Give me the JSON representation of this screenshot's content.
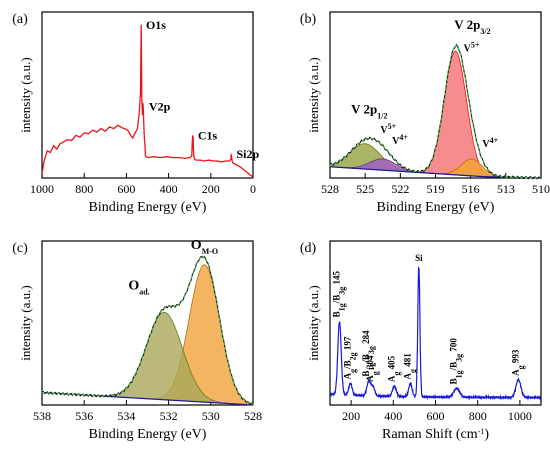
{
  "chart_data": [
    {
      "panel_label": "(a)",
      "type": "line",
      "xlabel": "Binding Energy (eV)",
      "ylabel": "intensity (a.u.)",
      "xlim": [
        1000,
        0
      ],
      "xticks": [
        1000,
        800,
        600,
        400,
        200,
        0
      ],
      "x_reversed": true,
      "series_color": "#e8141a",
      "series": [
        {
          "x": [
            1000,
            990,
            975,
            960,
            945,
            930,
            915,
            900,
            880,
            860,
            840,
            820,
            800,
            780,
            760,
            740,
            720,
            700,
            680,
            660,
            640,
            620,
            600,
            590,
            580,
            570,
            560,
            548,
            540,
            533,
            530,
            527,
            524,
            522,
            520,
            517,
            515,
            512,
            510,
            500,
            470,
            440,
            410,
            380,
            350,
            320,
            300,
            290,
            288,
            286,
            284,
            282,
            280,
            276,
            270,
            250,
            230,
            210,
            190,
            170,
            150,
            130,
            112,
            105,
            103,
            101,
            99,
            96,
            90,
            75,
            60,
            45,
            30,
            15,
            5,
            0
          ],
          "y": [
            5,
            20,
            32,
            30,
            38,
            34,
            40,
            42,
            45,
            44,
            50,
            48,
            53,
            52,
            56,
            54,
            58,
            55,
            60,
            58,
            62,
            59,
            57,
            55,
            50,
            47,
            52,
            58,
            75,
            100,
            180,
            96,
            74,
            88,
            82,
            60,
            48,
            38,
            26,
            24,
            25,
            24,
            25,
            24,
            24,
            23,
            24,
            26,
            40,
            50,
            48,
            32,
            25,
            22,
            21,
            21,
            20,
            21,
            20,
            20,
            19,
            20,
            20,
            22,
            28,
            24,
            20,
            18,
            17,
            15,
            13,
            10,
            7,
            4,
            2,
            0
          ]
        }
      ],
      "annotations": [
        {
          "text": "O1s",
          "x": 531,
          "y": 180
        },
        {
          "text": "V2p",
          "x": 517,
          "y": 84
        },
        {
          "text": "C1s",
          "x": 285,
          "y": 50
        },
        {
          "text": "Si2p",
          "x": 102,
          "y": 28
        }
      ]
    },
    {
      "panel_label": "(b)",
      "type": "line",
      "xlabel": "Binding Energy (eV)",
      "ylabel": "intensity (a.u.)",
      "xlim": [
        528,
        510
      ],
      "xticks": [
        528,
        525,
        522,
        519,
        516,
        513,
        510
      ],
      "x_reversed": true,
      "peaks": [
        {
          "center": 517.3,
          "height": 88,
          "width": 0.95,
          "color": "#f4787a",
          "stroke": "#e8141a"
        },
        {
          "center": 515.9,
          "height": 12,
          "width": 0.9,
          "color": "#f2a238",
          "stroke": "#c06a10"
        },
        {
          "center": 525.0,
          "height": 18,
          "width": 1.3,
          "color": "#9aa84a",
          "stroke": "#6f7a20"
        },
        {
          "center": 523.5,
          "height": 8,
          "width": 1.1,
          "color": "#a15fc0",
          "stroke": "#6b2d8a"
        }
      ],
      "background": {
        "y_at_528": 8,
        "y_at_515": 1,
        "y_at_510": 0
      },
      "annotations": [
        {
          "text": "V 2p",
          "sub": "3/2",
          "x": 517.4,
          "y": 106
        },
        {
          "text": "V",
          "sup": "5+",
          "x": 516.6,
          "y": 90
        },
        {
          "text": "V",
          "sup": "4+",
          "x": 515.0,
          "y": 22
        },
        {
          "text": "V 2p",
          "sub": "1/2",
          "x": 526.2,
          "y": 46
        },
        {
          "text": "V",
          "sup": "5+",
          "x": 523.7,
          "y": 32
        },
        {
          "text": "V",
          "sup": "4+",
          "x": 522.7,
          "y": 24
        }
      ]
    },
    {
      "panel_label": "(c)",
      "type": "line",
      "xlabel": "Binding Energy (eV)",
      "ylabel": "intensity (a.u.)",
      "xlim": [
        538,
        528
      ],
      "xticks": [
        538,
        536,
        534,
        532,
        530,
        528
      ],
      "x_reversed": true,
      "peaks": [
        {
          "center": 530.3,
          "height": 88,
          "width": 0.72,
          "color": "#f0a238",
          "stroke": "#c06a10"
        },
        {
          "center": 532.2,
          "height": 56,
          "width": 0.85,
          "color": "#a9a85a",
          "stroke": "#6f7a20"
        }
      ],
      "background": {
        "y_at_538": 8,
        "y_at_528": 0
      },
      "annotations": [
        {
          "text": "O",
          "sub": "M-O",
          "x": 530.3,
          "y": 100
        },
        {
          "text": "O",
          "sub": "ad.",
          "x": 533.4,
          "y": 74
        }
      ]
    },
    {
      "panel_label": "(d)",
      "type": "line",
      "xlabel": "Raman Shift (cm",
      "xlabel_sup": "-1",
      "xlabel_end": ")",
      "ylabel": "intensity (a.u.)",
      "xlim": [
        100,
        1100
      ],
      "xticks": [
        200,
        400,
        600,
        800,
        1000
      ],
      "x_reversed": false,
      "series_color": "#1818d8",
      "peaks": [
        {
          "center": 145,
          "height": 50,
          "width": 8
        },
        {
          "center": 197,
          "height": 8,
          "width": 8
        },
        {
          "center": 284,
          "height": 10,
          "width": 9
        },
        {
          "center": 304,
          "height": 6,
          "width": 8
        },
        {
          "center": 405,
          "height": 7,
          "width": 9
        },
        {
          "center": 481,
          "height": 9,
          "width": 8
        },
        {
          "center": 521,
          "height": 90,
          "width": 5
        },
        {
          "center": 700,
          "height": 6,
          "width": 14
        },
        {
          "center": 993,
          "height": 12,
          "width": 12
        }
      ],
      "baseline": 5,
      "annotations": [
        {
          "text": "B",
          "sub": "1g",
          "mid": "/B",
          "sub2": "3g",
          "tail": " 145",
          "x": 145
        },
        {
          "text": "A",
          "sub": "g",
          "mid": "/B",
          "sub2": "2g",
          "tail": " 197",
          "x": 197
        },
        {
          "text": "B",
          "sub": "1g",
          "mid": "/B",
          "sub2": "3g",
          "tail": " 284",
          "x": 284
        },
        {
          "text": "A",
          "sub": "g",
          "tail": " 304",
          "x": 304
        },
        {
          "text": "A",
          "sub": "g",
          "tail": " 405",
          "x": 405
        },
        {
          "text": "A",
          "sub": "g",
          "tail": " 481",
          "x": 481
        },
        {
          "text": "Si",
          "x": 521
        },
        {
          "text": "B",
          "sub": "1g",
          "mid": "/B",
          "sub2": "3g",
          "tail": " 700",
          "x": 700
        },
        {
          "text": "A",
          "sub": "g",
          "tail": " 993",
          "x": 993
        }
      ]
    }
  ]
}
